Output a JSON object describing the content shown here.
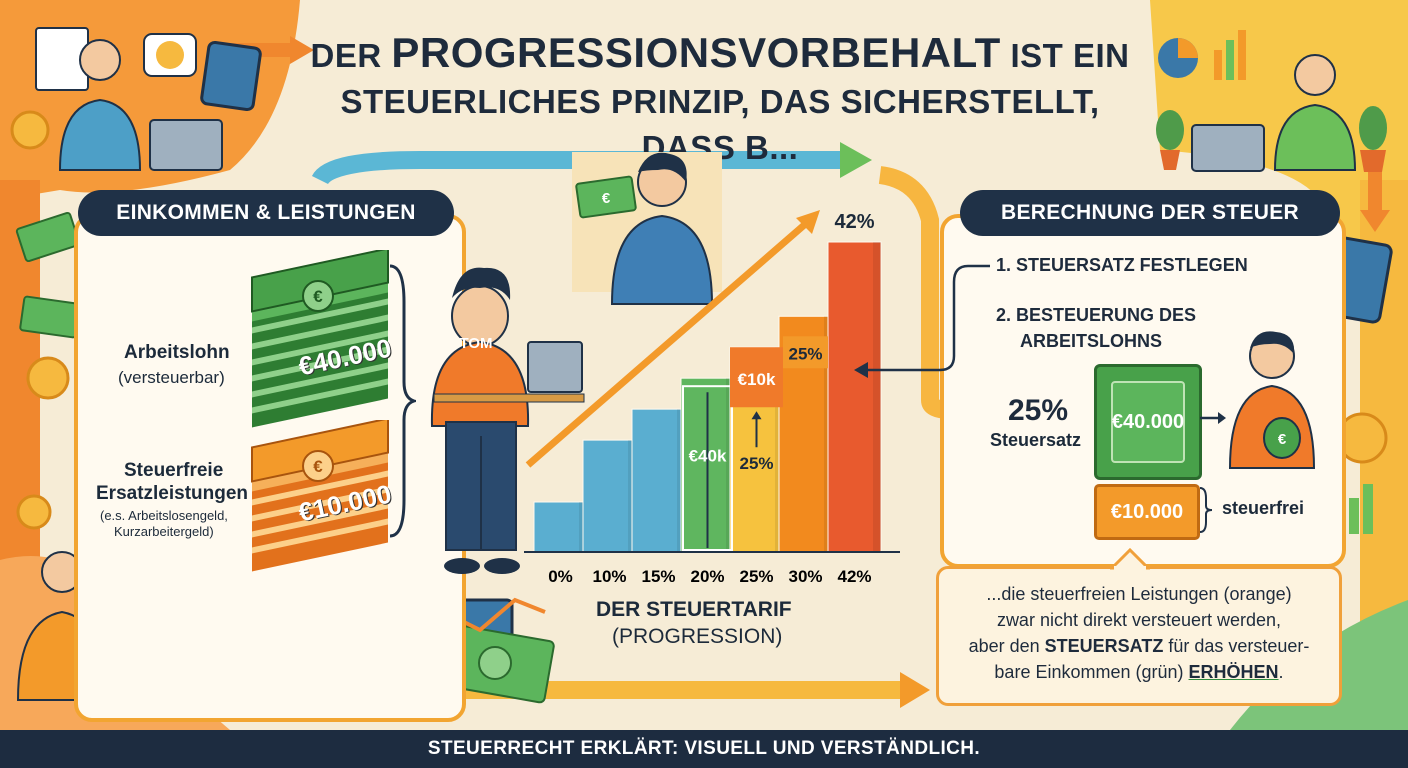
{
  "title": {
    "prefix": "DER",
    "highlight": "PROGRESSIONSVORBEHALT",
    "mid": "IST EIN",
    "line2": "STEUERLICHES PRINZIP, DAS SICHERSTELLT, DASS b..."
  },
  "left": {
    "header": "EINKOMMEN & LEISTUNGEN",
    "arbeitslohn_label": "Arbeitslohn",
    "arbeitslohn_sub": "(versteuerbar)",
    "green_stack_value": "€40.000",
    "steuerfreie_label_1": "Steuerfreie",
    "steuerfreie_label_2": "Ersatzleistungen",
    "steuerfreie_example_1": "(e.s. Arbeitslosengeld,",
    "steuerfreie_example_2": "Kurzarbeitergeld)",
    "orange_stack_value": "€10.000",
    "person_shirt": "TOM",
    "euro_symbol": "€"
  },
  "center": {
    "chart_title_1": "DER STEUERTARIF",
    "chart_title_2": "(PROGRESSION)"
  },
  "chart_data": {
    "type": "bar",
    "categories": [
      "0%",
      "10%",
      "15%",
      "20%",
      "25%",
      "30%",
      "42%"
    ],
    "values": [
      0,
      10,
      15,
      20,
      25,
      30,
      42
    ],
    "top_label": "42%",
    "annotation_green": "€40k",
    "annotation_orange": "€10k",
    "annotation_rate_low": "25%",
    "annotation_rate_high": "25%",
    "colors": [
      "#5aaed0",
      "#5aaed0",
      "#5aaed0",
      "#5fb65f",
      "#f6c23e",
      "#f28a1e",
      "#e85a2e"
    ]
  },
  "right": {
    "header": "BERECHNUNG DER STEUER",
    "step1": "1. STEUERSATZ FESTLEGEN",
    "step2_line1": "2. BESTEUERUNG DES",
    "step2_line2": "ARBEITSLOHNS",
    "rate_value": "25%",
    "rate_label": "Steuersatz",
    "green_bill_value": "€40.000",
    "orange_bill_value": "€10.000",
    "steuerfrei_label": "steuerfrei"
  },
  "callout": {
    "line1": "...die steuerfreien Leistungen (orange)",
    "line2": "zwar nicht direkt versteuert werden,",
    "line3_pre": "aber den",
    "line3_bold": "STEUERSATZ",
    "line3_post": "für das versteuer-",
    "line4_pre": "bare Einkommen (grün)",
    "line4_bold": "ERHÖHEN",
    "line4_post": "."
  },
  "footer": "STEUERRECHT ERKLÄRT: VISUELL UND VERSTÄNDLICH."
}
